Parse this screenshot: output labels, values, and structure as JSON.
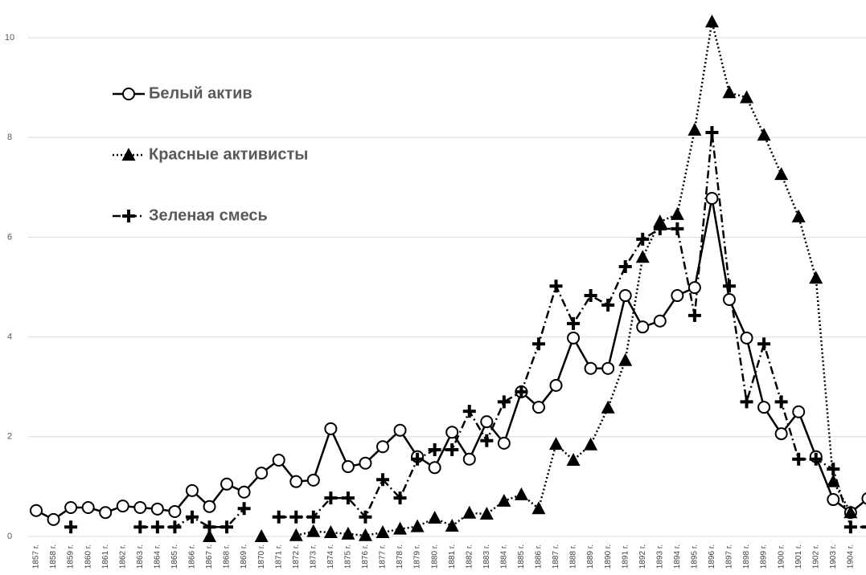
{
  "chart_data": {
    "type": "line",
    "categories": [
      "1857 г.",
      "1858 г.",
      "1859 г.",
      "1860 г.",
      "1861 г.",
      "1862 г.",
      "1863 г.",
      "1864 г.",
      "1865 г.",
      "1866 г.",
      "1867 г.",
      "1868 г.",
      "1869 г.",
      "1870 г.",
      "1871 г.",
      "1872 г.",
      "1873 г.",
      "1874 г.",
      "1875 г.",
      "1876 г.",
      "1877 г.",
      "1878 г.",
      "1879 г.",
      "1880 г.",
      "1881 г.",
      "1882 г.",
      "1883 г.",
      "1884 г.",
      "1885 г.",
      "1886 г.",
      "1887 г.",
      "1888 г.",
      "1889 г.",
      "1890 г.",
      "1891 г.",
      "1892 г.",
      "1893 г.",
      "1894 г.",
      "1895 г.",
      "1896 г.",
      "1897 г.",
      "1898 г.",
      "1899 г.",
      "1900 г.",
      "1901 г.",
      "1902 г.",
      "1903 г.",
      "1904 г.",
      null
    ],
    "series": [
      {
        "name": "Белый актив",
        "color": "#000000",
        "line_style": "solid",
        "marker": "circle",
        "values": [
          0.52,
          0.34,
          0.58,
          0.58,
          0.48,
          0.61,
          0.58,
          0.55,
          0.5,
          0.92,
          0.6,
          1.05,
          0.89,
          1.27,
          1.53,
          1.1,
          1.13,
          2.16,
          1.4,
          1.47,
          1.8,
          2.13,
          1.6,
          1.38,
          2.09,
          1.55,
          2.3,
          1.87,
          2.9,
          2.59,
          3.03,
          3.98,
          3.37,
          3.37,
          4.83,
          4.2,
          4.32,
          4.83,
          4.99,
          6.78,
          4.75,
          3.98,
          2.59,
          2.06,
          2.5,
          1.6,
          0.74,
          0.48,
          0.76
        ]
      },
      {
        "name": "Красные активисты",
        "color": "#000000",
        "line_style": "dotted",
        "marker": "triangle",
        "values": [
          null,
          null,
          null,
          null,
          null,
          null,
          null,
          null,
          null,
          null,
          0,
          null,
          null,
          0,
          null,
          0.02,
          0.1,
          0.08,
          0.05,
          0.02,
          0.08,
          0.15,
          0.2,
          0.37,
          0.21,
          0.47,
          0.45,
          0.71,
          0.84,
          0.56,
          1.85,
          1.53,
          1.84,
          2.58,
          3.53,
          5.6,
          6.31,
          6.46,
          8.15,
          10.32,
          8.9,
          8.8,
          8.05,
          7.26,
          6.41,
          5.18,
          1.1,
          0.48,
          null
        ]
      },
      {
        "name": "Зеленая смесь",
        "color": "#000000",
        "line_style": "dashdot",
        "marker": "plus",
        "values": [
          null,
          null,
          0.19,
          null,
          null,
          null,
          0.19,
          0.19,
          0.19,
          0.39,
          0.19,
          0.19,
          0.56,
          null,
          0.39,
          0.39,
          0.39,
          0.77,
          0.77,
          0.39,
          1.14,
          0.77,
          1.55,
          1.74,
          1.74,
          2.51,
          1.92,
          2.7,
          2.9,
          3.86,
          5.02,
          4.27,
          4.83,
          4.64,
          5.41,
          5.96,
          6.17,
          6.17,
          4.43,
          8.1,
          5.02,
          2.7,
          3.86,
          2.7,
          1.55,
          1.55,
          1.35,
          0.19,
          0.19
        ]
      }
    ],
    "ylim": [
      0,
      10.75
    ],
    "yticks": [
      0,
      2,
      4,
      6,
      8,
      10
    ],
    "grid": true,
    "legend": "upper left"
  }
}
